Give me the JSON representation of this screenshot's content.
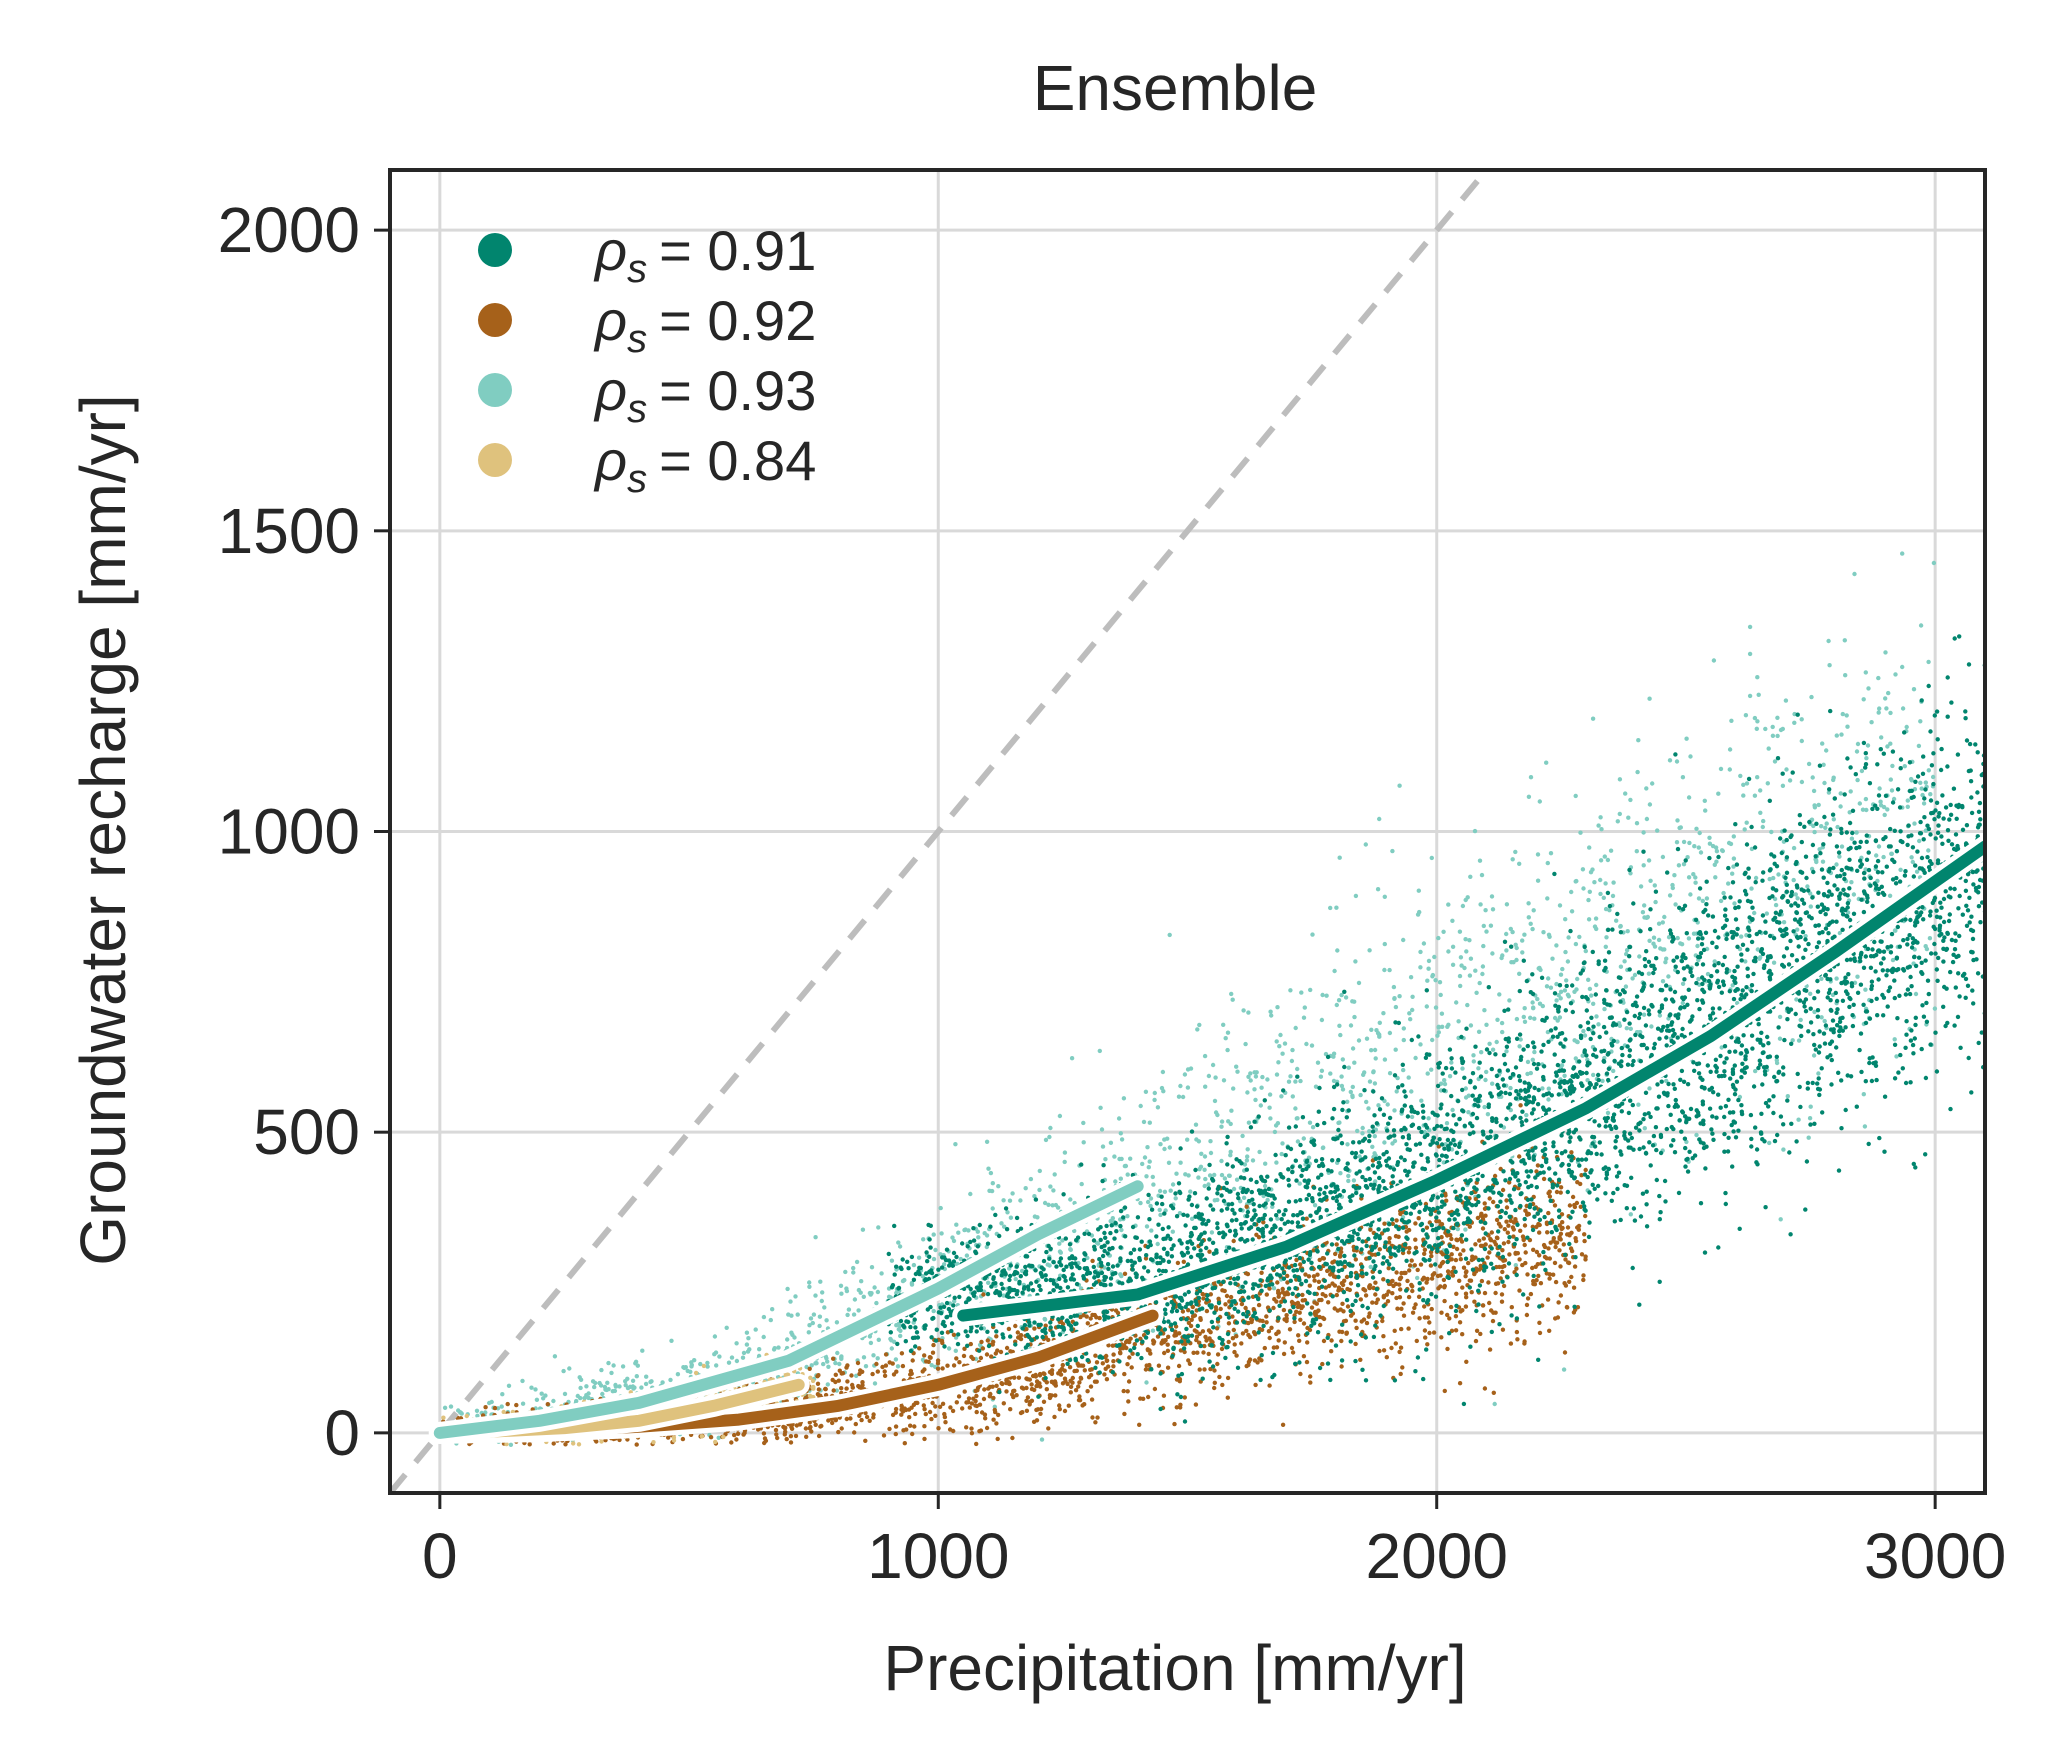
{
  "chart_data": {
    "type": "scatter",
    "title": "Ensemble",
    "xlabel": "Precipitation [mm/yr]",
    "ylabel": "Groundwater recharge [mm/yr]",
    "xlim": [
      -100,
      3100
    ],
    "ylim": [
      -100,
      2100
    ],
    "xticks": [
      0,
      1000,
      2000,
      3000
    ],
    "yticks": [
      0,
      500,
      1000,
      1500,
      2000
    ],
    "grid": true,
    "legend_position": "top-left",
    "reference_line": {
      "style": "dashed",
      "color": "#bdbdbd",
      "x": [
        -100,
        2200
      ],
      "y": [
        -100,
        2200
      ]
    },
    "series": [
      {
        "legend": "= 0.91",
        "color": "#01856e",
        "trend": {
          "x": [
            1050,
            1400,
            1700,
            2000,
            2300,
            2550,
            2800,
            3100
          ],
          "y": [
            195,
            230,
            310,
            420,
            540,
            660,
            800,
            975
          ]
        },
        "cloud": {
          "x_range": [
            900,
            3100
          ],
          "center_x": [
            900,
            1400,
            2000,
            2500,
            3100
          ],
          "center_y": [
            230,
            240,
            420,
            650,
            940
          ],
          "spread": [
            40,
            70,
            110,
            130,
            150
          ]
        }
      },
      {
        "legend": "= 0.92",
        "color": "#a6611a",
        "trend": {
          "x": [
            0,
            200,
            400,
            600,
            800,
            1000,
            1200,
            1430
          ],
          "y": [
            0,
            3,
            10,
            22,
            45,
            80,
            125,
            195
          ]
        },
        "cloud": {
          "x_range": [
            0,
            2300
          ],
          "center_x": [
            0,
            400,
            800,
            1200,
            1600,
            2000,
            2300
          ],
          "center_y": [
            5,
            15,
            45,
            110,
            200,
            280,
            330
          ],
          "spread": [
            15,
            20,
            30,
            50,
            60,
            70,
            75
          ]
        }
      },
      {
        "legend": "= 0.93",
        "color": "#80cdc1",
        "trend": {
          "x": [
            0,
            200,
            400,
            700,
            1000,
            1200,
            1400
          ],
          "y": [
            0,
            20,
            50,
            120,
            240,
            330,
            410
          ]
        },
        "cloud": {
          "x_range": [
            0,
            3000
          ],
          "center_x": [
            0,
            500,
            1000,
            1500,
            2000,
            2500,
            3000
          ],
          "center_y": [
            5,
            70,
            240,
            440,
            650,
            850,
            1050
          ],
          "spread": [
            20,
            35,
            70,
            110,
            150,
            170,
            190
          ]
        }
      },
      {
        "legend": "= 0.84",
        "color": "#dfc27d",
        "trend": {
          "x": [
            100,
            250,
            400,
            550,
            720
          ],
          "y": [
            2,
            8,
            20,
            45,
            80
          ]
        },
        "cloud": {
          "x_range": [
            0,
            750
          ],
          "center_x": [
            0,
            300,
            500,
            750
          ],
          "center_y": [
            5,
            15,
            40,
            80
          ],
          "spread": [
            10,
            15,
            20,
            25
          ]
        }
      }
    ]
  },
  "legend_symbol": {
    "base": "ρ",
    "subscript": "s"
  }
}
